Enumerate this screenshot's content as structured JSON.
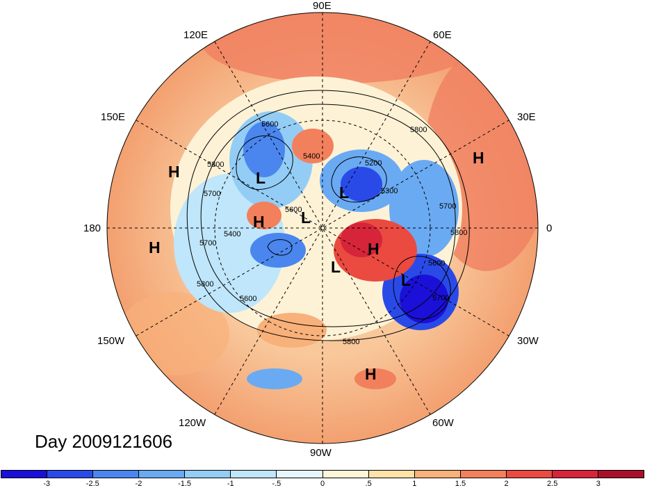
{
  "map": {
    "date_label": "Day 2009121606",
    "longitude_labels": [
      {
        "name": "lon-90e",
        "text": "90E"
      },
      {
        "name": "lon-60e",
        "text": "60E"
      },
      {
        "name": "lon-120e",
        "text": "120E"
      },
      {
        "name": "lon-30e",
        "text": "30E"
      },
      {
        "name": "lon-150e",
        "text": "150E"
      },
      {
        "name": "lon-180",
        "text": "180"
      },
      {
        "name": "lon-0",
        "text": "0"
      },
      {
        "name": "lon-150w",
        "text": "150W"
      },
      {
        "name": "lon-30w",
        "text": "30W"
      },
      {
        "name": "lon-120w",
        "text": "120W"
      },
      {
        "name": "lon-60w",
        "text": "60W"
      },
      {
        "name": "lon-90w",
        "text": "90W"
      }
    ],
    "pressure_centers": [
      "H",
      "L",
      "H",
      "H",
      "L",
      "L",
      "H",
      "L",
      "L",
      "H",
      "H"
    ],
    "contour_labels": [
      "5600",
      "5800",
      "5400",
      "5200",
      "5800",
      "5700",
      "5300",
      "5800",
      "5600",
      "5400",
      "5700",
      "5800",
      "5600",
      "5700",
      "5800",
      "5600",
      "5700"
    ]
  },
  "colorbar": {
    "colors": [
      "#1a10d8",
      "#2a4ae8",
      "#4a86ee",
      "#6aaaf2",
      "#93cdf5",
      "#bfe6fa",
      "#e6f6fc",
      "#fdf6d8",
      "#fde3a8",
      "#f8b17a",
      "#f2805c",
      "#ea4a40",
      "#d6243a",
      "#a8102a"
    ],
    "labels": [
      "-3",
      "-2.5",
      "-2",
      "-1.5",
      "-1",
      "-.5",
      "0",
      ".5",
      "1",
      "1.5",
      "2",
      "2.5",
      "3"
    ]
  }
}
